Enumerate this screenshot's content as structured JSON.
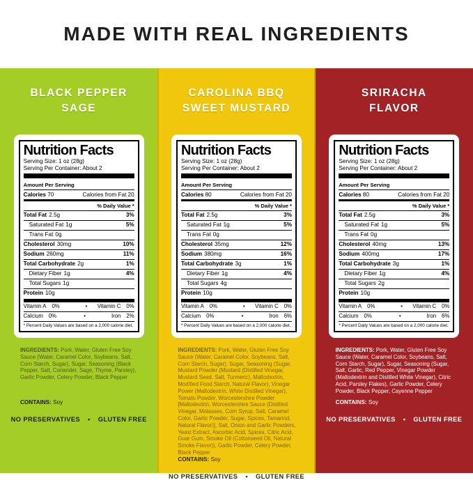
{
  "title": "MADE WITH REAL INGREDIENTS",
  "colors": {
    "green_panel": "#a4cd25",
    "yellow_panel": "#f0c70d",
    "red_panel": "#a22226",
    "title_text": "#221e1f",
    "green_ingredients_text": "#565a15",
    "yellow_ingredients_text": "#7c650a",
    "red_ingredients_text": "#ffffff"
  },
  "panels": [
    {
      "flavor_line1": "BLACK PEPPER",
      "flavor_line2": "SAGE",
      "nutrition": {
        "title": "Nutrition Facts",
        "serving_size": "Serving Size: 1 oz (28g)",
        "serving_per": "Serving Per Container: About 2",
        "amount_per": "Amount Per Serving",
        "calories_label": "Calories",
        "calories": "70",
        "calories_fat": "Calories from Fat 20",
        "dv_header": "% Daily Value *",
        "rows": [
          {
            "cls": "nrow b",
            "label": "Total Fat",
            "value": "2.5g",
            "dv": "3%"
          },
          {
            "cls": "nrow sub",
            "label": "Saturated Fat",
            "value": "1g",
            "dv": "5%"
          },
          {
            "cls": "nrow sub",
            "label": "Trans Fat",
            "value": "0g",
            "dv": ""
          },
          {
            "cls": "nrow b",
            "label": "Cholesterol",
            "value": "30mg",
            "dv": "10%"
          },
          {
            "cls": "nrow b",
            "label": "Sodium",
            "value": "260mg",
            "dv": "11%"
          },
          {
            "cls": "nrow b",
            "label": "Total Carbohydrate",
            "value": "2g",
            "dv": "1%"
          },
          {
            "cls": "nrow sub",
            "label": "Dietary Fiber",
            "value": "1g",
            "dv": "4%"
          },
          {
            "cls": "nrow sub",
            "label": "Total Sugars",
            "value": "1g",
            "dv": ""
          },
          {
            "cls": "nrow b last",
            "label": "Protein",
            "value": "10g",
            "dv": ""
          }
        ],
        "vitamins": [
          {
            "cls": "vrow",
            "l1": "Vitamin A",
            "v1": "0%",
            "sep": "•",
            "l2": "Vitamin C",
            "v2": "0%"
          },
          {
            "cls": "vrow line",
            "l1": "Calcium",
            "v1": "0%",
            "sep": "•",
            "l2": "Iron",
            "v2": "2%"
          }
        ],
        "footnote": "* Percent Daily Values are based on a 2,000 calorie diet."
      },
      "ingredients_label": "INGREDIENTS:",
      "ingredients": "Pork, Water, Gluten Free Soy Sauce (Water, Caramel Color, Soybeans, Salt, Corn Starch, Sugar), Sugar, Seasoning (Black Pepper, Salt, Coriander, Sage, Thyme, Parsley), Garlic Powder, Celery Powder, Black Pepper",
      "contains_label": "CONTAINS:",
      "contains": "Soy",
      "badge1": "NO PRESERVATIVES",
      "badge_sep": "•",
      "badge2": "GLUTEN FREE"
    },
    {
      "flavor_line1": "CAROLINA BBQ",
      "flavor_line2": "SWEET MUSTARD",
      "nutrition": {
        "title": "Nutrition Facts",
        "serving_size": "Serving Size: 1 oz (28g)",
        "serving_per": "Serving Per Container: About 2",
        "amount_per": "Amount Per Serving",
        "calories_label": "Calories",
        "calories": "80",
        "calories_fat": "Calories from Fat 20",
        "dv_header": "% Daily Value *",
        "rows": [
          {
            "cls": "nrow b",
            "label": "Total Fat",
            "value": "2.5g",
            "dv": "3%"
          },
          {
            "cls": "nrow sub",
            "label": "Saturated Fat",
            "value": "1g",
            "dv": "5%"
          },
          {
            "cls": "nrow sub",
            "label": "Trans Fat",
            "value": "0g",
            "dv": ""
          },
          {
            "cls": "nrow b",
            "label": "Cholesterol",
            "value": "35mg",
            "dv": "12%"
          },
          {
            "cls": "nrow b",
            "label": "Sodium",
            "value": "380mg",
            "dv": "16%"
          },
          {
            "cls": "nrow b",
            "label": "Total Carbohydrate",
            "value": "3g",
            "dv": "1%"
          },
          {
            "cls": "nrow sub",
            "label": "Dietary Fiber",
            "value": "1g",
            "dv": "4%"
          },
          {
            "cls": "nrow sub",
            "label": "Total Sugars",
            "value": "4g",
            "dv": ""
          },
          {
            "cls": "nrow b last",
            "label": "Protein",
            "value": "10g",
            "dv": ""
          }
        ],
        "vitamins": [
          {
            "cls": "vrow",
            "l1": "Vitamin A",
            "v1": "0%",
            "sep": "•",
            "l2": "Vitamin C",
            "v2": "0%"
          },
          {
            "cls": "vrow line",
            "l1": "Calcium",
            "v1": "0%",
            "sep": "•",
            "l2": "Iron",
            "v2": "6%"
          }
        ],
        "footnote": "* Percent Daily Values are based on a 2,000 calorie diet."
      },
      "ingredients_label": "INGREDIENTS:",
      "ingredients": "Pork, Water, Gluten Free Soy Sauce (Water, Caramel Color, Soybeans, Salt, Corn Starch, Sugar), Sugar, Seasoning (Sugar, Mustard Powder (Mustard (Distilled Vinegar, Mustard Seed, Salt, Turmeric), Maltodextrin, Modified Food Starch, Natural Flavor), Vinegar Power (Maltodextrin, White Distilled Vinegar), Tomato Powder, Worcestershire Powder [Maltodextrin, Worcestershire Sauce (Distilled Vinegar, Molasses, Corn Syrup, Salt, Caramel Color, Garlic Powder, Sugar, Spices, Tamarind, Natural Flavor)], Salt, Onion and Garlic Powders, Yeast Extract, Ascorbic Acid, Spices, Citric Acid, Guar Gum, Smoke Oil (Cottonseed Oil, Natural Smoke Flavor)), Garlic Powder, Celery Powder, Black Pepper",
      "contains_label": "CONTAINS:",
      "contains": "Soy",
      "badge1": "NO PRESERVATIVES",
      "badge_sep": "•",
      "badge2": "GLUTEN FREE"
    },
    {
      "flavor_line1": "SRIRACHA",
      "flavor_line2": "FLAVOR",
      "nutrition": {
        "title": "Nutrition Facts",
        "serving_size": "Serving Size: 1 oz (28g)",
        "serving_per": "Serving Per Container: About 2",
        "amount_per": "Amount Per Serving",
        "calories_label": "Calories",
        "calories": "80",
        "calories_fat": "Calories from Fat 20",
        "dv_header": "% Daily Value *",
        "rows": [
          {
            "cls": "nrow b",
            "label": "Total Fat",
            "value": "2.5g",
            "dv": "3%"
          },
          {
            "cls": "nrow sub",
            "label": "Saturated Fat",
            "value": "1g",
            "dv": "5%"
          },
          {
            "cls": "nrow sub",
            "label": "Trans Fat",
            "value": "0g",
            "dv": ""
          },
          {
            "cls": "nrow b",
            "label": "Cholesterol",
            "value": "40mg",
            "dv": "13%"
          },
          {
            "cls": "nrow b",
            "label": "Sodium",
            "value": "400mg",
            "dv": "17%"
          },
          {
            "cls": "nrow b",
            "label": "Total Carbohydrate",
            "value": "3g",
            "dv": "1%"
          },
          {
            "cls": "nrow sub",
            "label": "Dietary Fiber",
            "value": "1g",
            "dv": "4%"
          },
          {
            "cls": "nrow sub",
            "label": "Total Sugars",
            "value": "2g",
            "dv": ""
          },
          {
            "cls": "nrow b last",
            "label": "Protein",
            "value": "10g",
            "dv": ""
          }
        ],
        "vitamins": [
          {
            "cls": "vrow",
            "l1": "Vitamin A",
            "v1": "0%",
            "sep": "•",
            "l2": "Vitamin C",
            "v2": "0%"
          },
          {
            "cls": "vrow line",
            "l1": "Calcium",
            "v1": "0%",
            "sep": "•",
            "l2": "Iron",
            "v2": "6%"
          }
        ],
        "footnote": "* Percent Daily Values are based on a 2,000 calorie diet."
      },
      "ingredients_label": "INGREDIENTS:",
      "ingredients": "Pork, Water, Gluten Free Soy Sauce (Water, Caramel Color, Soybeans, Salt, Corn Starch, Sugar), Sugar, Seasoning (Sugar, Salt, Garlic, Red Pepper, Vinegar Powder (Maltodextrin and Distilled White Vinegar), Citric Acid, Parsley Flakes), Garlic Powder, Celery Powder, Black Pepper, Cayenne Pepper",
      "contains_label": "CONTAINS:",
      "contains": "Soy",
      "badge1": "NO PRESERVATIVES",
      "badge_sep": "•",
      "badge2": "GLUTEN FREE"
    }
  ]
}
